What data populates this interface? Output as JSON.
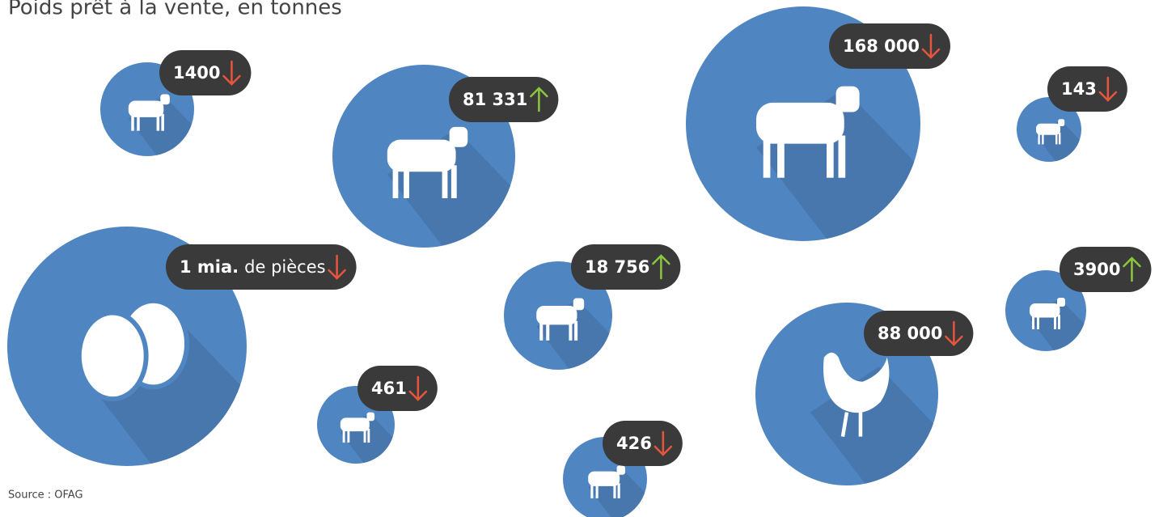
{
  "title": "Poids prêt à la vente, en tonnes",
  "source": "Source : OFAG",
  "items": [
    {
      "value": "1400",
      "trend": "down"
    },
    {
      "value": "81 331",
      "trend": "up"
    },
    {
      "value": "168 000",
      "trend": "down"
    },
    {
      "value": "143",
      "trend": "down"
    },
    {
      "value": "1 mia.",
      "unit": "de pièces",
      "trend": "down"
    },
    {
      "value": "18 756",
      "trend": "up"
    },
    {
      "value": "3900",
      "trend": "up"
    },
    {
      "value": "88 000",
      "trend": "down"
    },
    {
      "value": "461",
      "trend": "down"
    },
    {
      "value": "426",
      "trend": "down"
    }
  ]
}
